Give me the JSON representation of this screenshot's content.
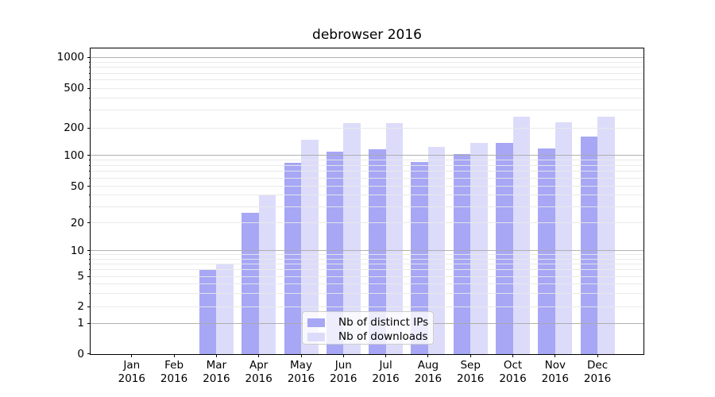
{
  "title": "debrowser 2016",
  "legend": {
    "items": [
      {
        "label": "Nb of distinct IPs",
        "swatch": "dark-blue-swatch"
      },
      {
        "label": "Nb of downloads",
        "swatch": "light-blue-swatch"
      }
    ]
  },
  "y_axis": {
    "tick_labels": [
      "0",
      "1",
      "2",
      "5",
      "10",
      "20",
      "50",
      "100",
      "200",
      "500",
      "1000"
    ]
  },
  "x_axis": {
    "tick_labels": [
      [
        "Jan",
        "2016"
      ],
      [
        "Feb",
        "2016"
      ],
      [
        "Mar",
        "2016"
      ],
      [
        "Apr",
        "2016"
      ],
      [
        "May",
        "2016"
      ],
      [
        "Jun",
        "2016"
      ],
      [
        "Jul",
        "2016"
      ],
      [
        "Aug",
        "2016"
      ],
      [
        "Sep",
        "2016"
      ],
      [
        "Oct",
        "2016"
      ],
      [
        "Nov",
        "2016"
      ],
      [
        "Dec",
        "2016"
      ]
    ]
  },
  "colors": {
    "bar_dark": "#a7a7f5",
    "bar_light": "#dcdcfa",
    "grid_major": "rgba(168,168,168,0.9)",
    "grid_minor": "rgba(232,232,232,0.92)",
    "spine": "#000000",
    "legend_border": "#cccccc",
    "text": "#000000"
  },
  "chart_data": {
    "type": "bar",
    "title": "debrowser 2016",
    "categories": [
      "Jan 2016",
      "Feb 2016",
      "Mar 2016",
      "Apr 2016",
      "May 2016",
      "Jun 2016",
      "Jul 2016",
      "Aug 2016",
      "Sep 2016",
      "Oct 2016",
      "Nov 2016",
      "Dec 2016"
    ],
    "series": [
      {
        "name": "Nb of distinct IPs",
        "color": "#a7a7f5",
        "values": [
          0,
          0,
          6,
          26,
          86,
          110,
          118,
          87,
          104,
          137,
          120,
          162
        ]
      },
      {
        "name": "Nb of downloads",
        "color": "#dcdcfa",
        "values": [
          0,
          0,
          7,
          40,
          149,
          224,
          224,
          126,
          138,
          259,
          231,
          261
        ]
      }
    ],
    "xlabel": "",
    "ylabel": "",
    "yscale": "log-like (compressed near 0, with 0 baseline)",
    "y_ticks": [
      0,
      1,
      2,
      5,
      10,
      20,
      50,
      100,
      200,
      500,
      1000
    ],
    "ylim": [
      0,
      1200
    ],
    "grid": "horizontal major (1,10,100,1000) and minor log lines, drawn over bars",
    "legend_position": "inside lower-center"
  }
}
